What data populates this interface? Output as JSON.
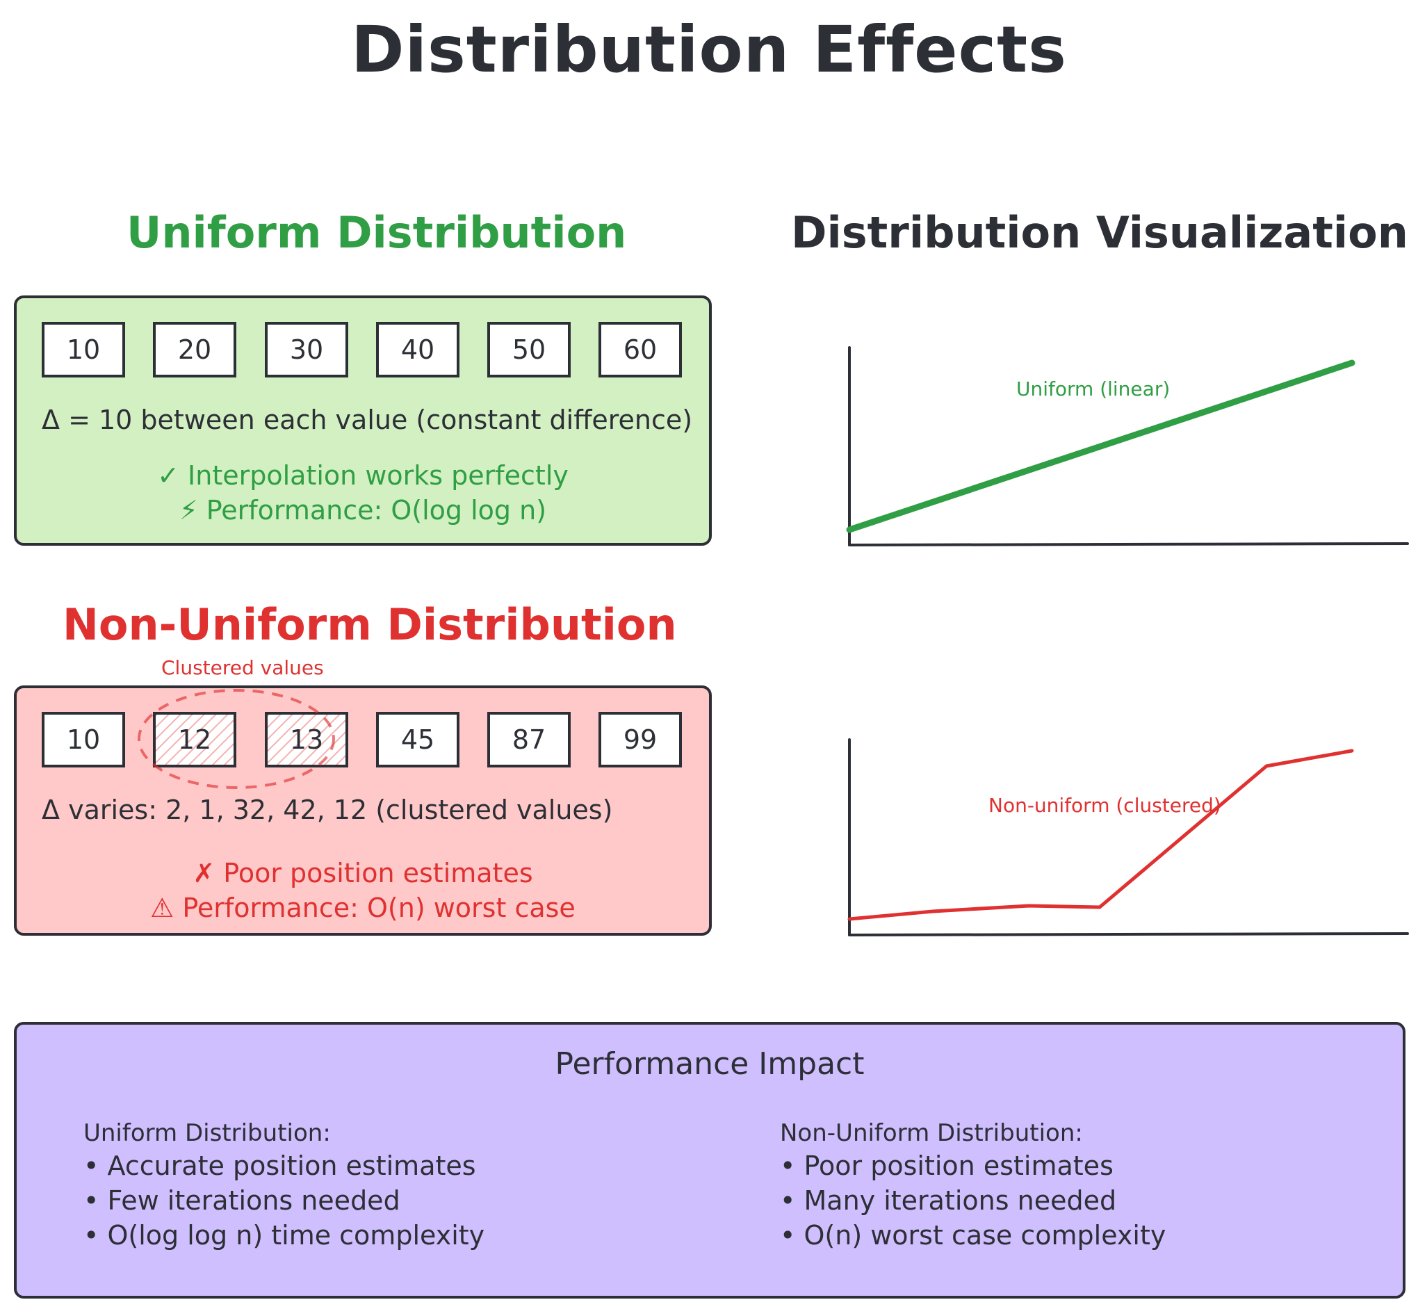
{
  "title": "Distribution Effects",
  "uniform": {
    "heading": "Uniform Distribution",
    "values": [
      "10",
      "20",
      "30",
      "40",
      "50",
      "60"
    ],
    "delta_text": "Δ = 10 between each value (constant difference)",
    "check_text": "✓ Interpolation works perfectly",
    "perf_text": "⚡ Performance: O(log log n)"
  },
  "nonuniform": {
    "heading": "Non-Uniform Distribution",
    "cluster_label": "Clustered values",
    "values": [
      "10",
      "12",
      "13",
      "45",
      "87",
      "99"
    ],
    "delta_text": "Δ varies: 2, 1, 32, 42, 12 (clustered values)",
    "cross_text": "✗ Poor position estimates",
    "perf_text": "⚠ Performance: O(n) worst case"
  },
  "visualization": {
    "heading": "Distribution Visualization",
    "uniform_label": "Uniform (linear)",
    "nonuniform_label": "Non-uniform (clustered)",
    "colors": {
      "uniform": "#2f9e44",
      "nonuniform": "#e03131"
    }
  },
  "impact": {
    "title": "Performance Impact",
    "left_heading": "Uniform Distribution:",
    "left_items": [
      "• Accurate position estimates",
      "• Few iterations needed",
      "• O(log log n) time complexity"
    ],
    "right_heading": "Non-Uniform Distribution:",
    "right_items": [
      "• Poor position estimates",
      "• Many iterations needed",
      "• O(n) worst case complexity"
    ]
  }
}
